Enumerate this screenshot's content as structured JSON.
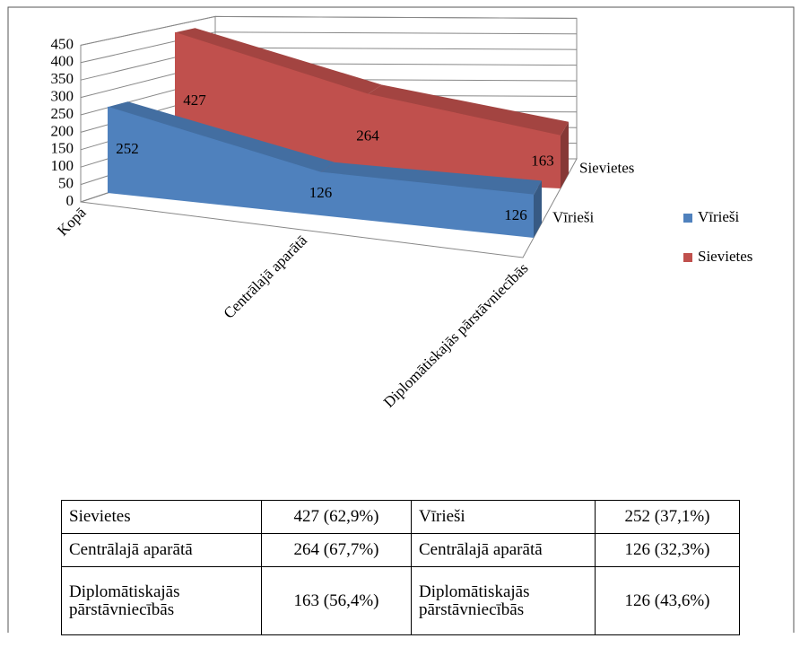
{
  "chart_data": {
    "type": "area3d",
    "categories": [
      "Kopā",
      "Centrālajā aparātā",
      "Diplomātiskajās pārstāvniecībās"
    ],
    "series": [
      {
        "name": "Vīrieši",
        "color": "#4f81bd",
        "values": [
          252,
          126,
          126
        ]
      },
      {
        "name": "Sievietes",
        "color": "#c0504d",
        "values": [
          427,
          264,
          163
        ]
      }
    ],
    "ylim": [
      0,
      450
    ],
    "yticks": [
      0,
      50,
      100,
      150,
      200,
      250,
      300,
      350,
      400,
      450
    ],
    "grid": true,
    "legend": "right"
  },
  "table": {
    "rows": [
      [
        "Sievietes",
        "427 (62,9%)",
        "Vīrieši",
        "252 (37,1%)"
      ],
      [
        "Centrālajā aparātā",
        "264 (67,7%)",
        "Centrālajā aparātā",
        "126 (32,3%)"
      ],
      [
        "Diplomātiskajās pārstāvniecībās",
        "163 (56,4%)",
        "Diplomātiskajās pārstāvniecībās",
        "126 (43,6%)"
      ]
    ]
  }
}
